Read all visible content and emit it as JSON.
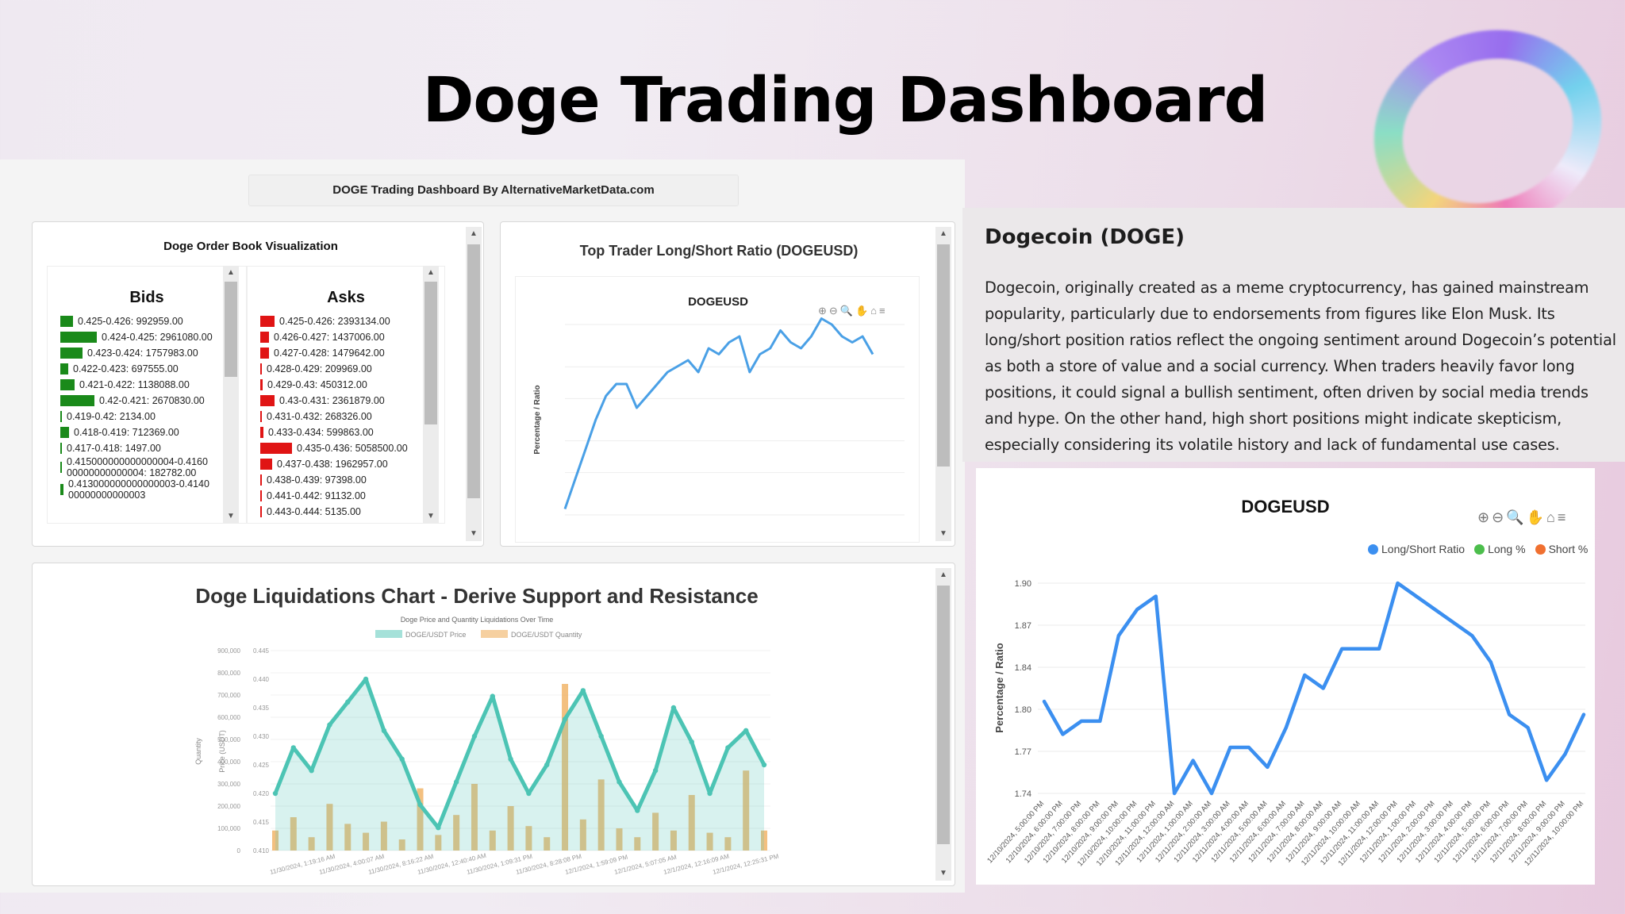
{
  "page_title": "Doge Trading Dashboard",
  "dashboard_header": "DOGE Trading Dashboard By AlternativeMarketData.com",
  "order_book": {
    "title": "Doge Order Book Visualization",
    "bids_label": "Bids",
    "asks_label": "Asks",
    "bid_color": "#1a8a1a",
    "ask_color": "#e01414",
    "bids": [
      {
        "text": "0.425-0.426: 992959.00",
        "bar": 16
      },
      {
        "text": "0.424-0.425: 2961080.00",
        "bar": 46
      },
      {
        "text": "0.423-0.424: 1757983.00",
        "bar": 28
      },
      {
        "text": "0.422-0.423: 697555.00",
        "bar": 10
      },
      {
        "text": "0.421-0.422: 1138088.00",
        "bar": 18
      },
      {
        "text": "0.42-0.421: 2670830.00",
        "bar": 43
      },
      {
        "text": "0.419-0.42: 2134.00",
        "bar": 0
      },
      {
        "text": "0.418-0.419: 712369.00",
        "bar": 11
      },
      {
        "text": "0.417-0.418: 1497.00",
        "bar": 0
      },
      {
        "text": "0.415000000000000004-0.416000000000000004: 182782.00",
        "bar": 2
      },
      {
        "text": "0.413000000000000003-0.414000000000000003",
        "bar": 4
      }
    ],
    "asks": [
      {
        "text": "0.425-0.426: 2393134.00",
        "bar": 18
      },
      {
        "text": "0.426-0.427: 1437006.00",
        "bar": 11
      },
      {
        "text": "0.427-0.428: 1479642.00",
        "bar": 11
      },
      {
        "text": "0.428-0.429: 209969.00",
        "bar": 2
      },
      {
        "text": "0.429-0.43: 450312.00",
        "bar": 3
      },
      {
        "text": "0.43-0.431: 2361879.00",
        "bar": 18
      },
      {
        "text": "0.431-0.432: 268326.00",
        "bar": 2
      },
      {
        "text": "0.433-0.434: 599863.00",
        "bar": 4
      },
      {
        "text": "0.435-0.436: 5058500.00",
        "bar": 40
      },
      {
        "text": "0.437-0.438: 1962957.00",
        "bar": 15
      },
      {
        "text": "0.438-0.439: 97398.00",
        "bar": 1
      },
      {
        "text": "0.441-0.442: 91132.00",
        "bar": 1
      },
      {
        "text": "0.443-0.444: 5135.00",
        "bar": 0
      }
    ]
  },
  "small_ratio_chart": {
    "title": "Top Trader Long/Short Ratio (DOGEUSD)",
    "chart_title": "DOGEUSD",
    "ylabel": "Percentage / Ratio",
    "line_color": "#4aa0e6"
  },
  "liquidations": {
    "title": "Doge Liquidations Chart - Derive Support and Resistance",
    "subtitle": "Doge Price and Quantity Liquidations Over Time",
    "legend": [
      "DOGE/USDT Price",
      "DOGE/USDT Quantity"
    ],
    "price_color": "#4cc4b4",
    "qty_color": "#f0b060",
    "ylabel_left": "Quantity",
    "ylabel_right": "Price (USDT)",
    "qty_ticks": [
      "900,000",
      "800,000",
      "700,000",
      "600,000",
      "500,000",
      "400,000",
      "300,000",
      "200,000",
      "100,000",
      "0"
    ],
    "price_ticks": [
      "0.445",
      "0.440",
      "0.435",
      "0.430",
      "0.425",
      "0.420",
      "0.415",
      "0.410"
    ],
    "x_ticks": [
      "11/30/2024, 1:19:16 AM",
      "11/30/2024, 4:00:07 AM",
      "11/30/2024, 8:16:22 AM",
      "11/30/2024, 12:40:40 AM",
      "11/30/2024, 1:09:31 PM",
      "11/30/2024, 8:28:08 PM",
      "12/1/2024, 1:59:09 PM",
      "12/1/2024, 5:07:05 AM",
      "12/1/2024, 12:16:09 AM",
      "12/1/2024, 12:25:31 PM"
    ]
  },
  "info": {
    "heading": "Dogecoin (DOGE)",
    "body": "Dogecoin, originally created as a meme cryptocurrency, has gained mainstream popularity, particularly due to endorsements from figures like Elon Musk. Its long/short position ratios reflect the ongoing sentiment around Dogecoin’s potential as both a store of value and a social currency. When traders heavily favor long positions, it could signal a bullish sentiment, often driven by social media trends and hype. On the other hand, high short positions might indicate skepticism, especially considering its volatile history and lack of fundamental use cases."
  },
  "big_chart": {
    "title": "DOGEUSD",
    "legend": [
      {
        "label": "Long/Short Ratio",
        "color": "#3b8ff0"
      },
      {
        "label": "Long %",
        "color": "#4cbe4c"
      },
      {
        "label": "Short %",
        "color": "#f07030"
      }
    ],
    "ylabel": "Percentage / Ratio",
    "y_ticks": [
      "1.90",
      "1.87",
      "1.84",
      "1.80",
      "1.77",
      "1.74"
    ],
    "x_ticks": [
      "12/10/2024, 5:00:00 PM",
      "12/10/2024, 6:00:00 PM",
      "12/10/2024, 7:00:00 PM",
      "12/10/2024, 8:00:00 PM",
      "12/10/2024, 9:00:00 PM",
      "12/10/2024, 10:00:00 PM",
      "12/10/2024, 11:00:00 PM",
      "12/11/2024, 12:00:00 AM",
      "12/11/2024, 1:00:00 AM",
      "12/11/2024, 2:00:00 AM",
      "12/11/2024, 3:00:00 AM",
      "12/11/2024, 4:00:00 AM",
      "12/11/2024, 5:00:00 AM",
      "12/11/2024, 6:00:00 AM",
      "12/11/2024, 7:00:00 AM",
      "12/11/2024, 8:00:00 AM",
      "12/11/2024, 9:00:00 AM",
      "12/11/2024, 10:00:00 AM",
      "12/11/2024, 11:00:00 AM",
      "12/11/2024, 12:00:00 PM",
      "12/11/2024, 1:00:00 PM",
      "12/11/2024, 2:00:00 PM",
      "12/11/2024, 3:00:00 PM",
      "12/11/2024, 4:00:00 PM",
      "12/11/2024, 5:00:00 PM",
      "12/11/2024, 6:00:00 PM",
      "12/11/2024, 7:00:00 PM",
      "12/11/2024, 8:00:00 PM",
      "12/11/2024, 9:00:00 PM",
      "12/11/2024, 10:00:00 PM"
    ],
    "line_color": "#3b8ff0"
  },
  "chart_data": [
    {
      "type": "line",
      "title": "DOGEUSD",
      "ylabel": "Percentage / Ratio",
      "ylim": [
        1.73,
        1.91
      ],
      "series": [
        {
          "name": "Long/Short Ratio",
          "values": [
            1.81,
            1.785,
            1.795,
            1.795,
            1.86,
            1.88,
            1.89,
            1.74,
            1.765,
            1.74,
            1.775,
            1.775,
            1.76,
            1.79,
            1.83,
            1.82,
            1.85,
            1.85,
            1.85,
            1.9,
            1.89,
            1.88,
            1.87,
            1.86,
            1.84,
            1.8,
            1.79,
            1.75,
            1.77,
            1.8
          ]
        }
      ]
    },
    {
      "type": "line",
      "title": "DOGEUSD",
      "ylabel": "Percentage / Ratio",
      "ylim": [
        1.29,
        1.45
      ],
      "series": [
        {
          "name": "Long/Short Ratio",
          "values": [
            1.295,
            1.32,
            1.345,
            1.37,
            1.39,
            1.4,
            1.4,
            1.38,
            1.39,
            1.4,
            1.41,
            1.415,
            1.42,
            1.41,
            1.43,
            1.425,
            1.435,
            1.44,
            1.41,
            1.425,
            1.43,
            1.445,
            1.435,
            1.43,
            1.44,
            1.455,
            1.45,
            1.44,
            1.435,
            1.44,
            1.425
          ]
        }
      ]
    },
    {
      "type": "line",
      "title": "Doge Price and Quantity Liquidations Over Time",
      "series": [
        {
          "name": "DOGE/USDT Price",
          "values": [
            0.42,
            0.428,
            0.424,
            0.432,
            0.436,
            0.44,
            0.431,
            0.426,
            0.418,
            0.414,
            0.422,
            0.43,
            0.437,
            0.426,
            0.42,
            0.425,
            0.433,
            0.438,
            0.43,
            0.422,
            0.417,
            0.424,
            0.435,
            0.429,
            0.42,
            0.428,
            0.431,
            0.425
          ]
        },
        {
          "name": "DOGE/USDT Quantity",
          "values": [
            90000,
            150000,
            60000,
            210000,
            120000,
            80000,
            130000,
            50000,
            280000,
            70000,
            160000,
            300000,
            90000,
            200000,
            110000,
            60000,
            750000,
            140000,
            320000,
            100000,
            60000,
            170000,
            90000,
            250000,
            80000,
            60000,
            360000,
            90000
          ]
        }
      ]
    }
  ]
}
